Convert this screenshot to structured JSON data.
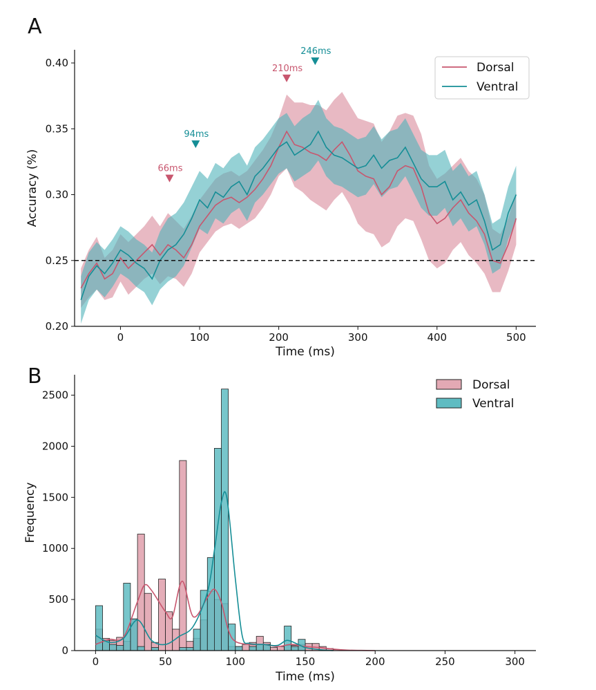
{
  "figure": {
    "panels": [
      {
        "letter": "A"
      },
      {
        "letter": "B"
      }
    ]
  },
  "colors": {
    "dorsal": "#c8566e",
    "dorsal_fill": "#d98a9b",
    "ventral": "#158e96",
    "ventral_fill": "#4fb3b9",
    "dorsal_bar": "#e3a9b4",
    "ventral_bar": "#5fbcc2",
    "chance": "#111111"
  },
  "chart_data": [
    {
      "type": "line",
      "panel": "A",
      "xlabel": "Time (ms)",
      "ylabel": "Accuracy (%)",
      "xlim": [
        -58,
        525
      ],
      "ylim": [
        0.2,
        0.41
      ],
      "xticks": [
        0,
        100,
        200,
        300,
        400,
        500
      ],
      "yticks": [
        0.2,
        0.25,
        0.3,
        0.35,
        0.4
      ],
      "ytick_labels": [
        "0.20",
        "0.25",
        "0.30",
        "0.35",
        "0.40"
      ],
      "chance_level": 0.25,
      "legend": {
        "position": "top-right",
        "entries": [
          "Dorsal",
          "Ventral"
        ]
      },
      "series": [
        {
          "name": "Dorsal",
          "x": [
            -50,
            -40,
            -30,
            -20,
            -10,
            0,
            10,
            20,
            30,
            40,
            50,
            60,
            70,
            80,
            90,
            100,
            110,
            120,
            130,
            140,
            150,
            160,
            170,
            180,
            190,
            200,
            210,
            220,
            230,
            240,
            250,
            260,
            270,
            280,
            290,
            300,
            310,
            320,
            330,
            340,
            350,
            360,
            370,
            380,
            390,
            400,
            410,
            420,
            430,
            440,
            450,
            460,
            470,
            480,
            490,
            500
          ],
          "y": [
            0.229,
            0.24,
            0.248,
            0.236,
            0.24,
            0.252,
            0.244,
            0.25,
            0.256,
            0.262,
            0.254,
            0.262,
            0.258,
            0.252,
            0.262,
            0.276,
            0.284,
            0.292,
            0.296,
            0.298,
            0.294,
            0.298,
            0.304,
            0.312,
            0.322,
            0.336,
            0.348,
            0.338,
            0.336,
            0.332,
            0.33,
            0.326,
            0.334,
            0.34,
            0.33,
            0.318,
            0.314,
            0.312,
            0.3,
            0.306,
            0.318,
            0.322,
            0.32,
            0.306,
            0.286,
            0.278,
            0.282,
            0.29,
            0.296,
            0.286,
            0.28,
            0.27,
            0.25,
            0.248,
            0.262,
            0.282
          ],
          "lower": [
            0.214,
            0.222,
            0.228,
            0.22,
            0.222,
            0.234,
            0.224,
            0.23,
            0.236,
            0.24,
            0.232,
            0.238,
            0.236,
            0.23,
            0.24,
            0.256,
            0.264,
            0.272,
            0.276,
            0.278,
            0.274,
            0.278,
            0.282,
            0.29,
            0.3,
            0.314,
            0.32,
            0.306,
            0.302,
            0.296,
            0.292,
            0.288,
            0.296,
            0.302,
            0.292,
            0.278,
            0.272,
            0.27,
            0.26,
            0.264,
            0.276,
            0.282,
            0.28,
            0.266,
            0.25,
            0.244,
            0.248,
            0.258,
            0.264,
            0.254,
            0.248,
            0.24,
            0.226,
            0.226,
            0.242,
            0.262
          ],
          "upper": [
            0.244,
            0.258,
            0.268,
            0.252,
            0.258,
            0.27,
            0.264,
            0.27,
            0.276,
            0.284,
            0.276,
            0.286,
            0.28,
            0.274,
            0.284,
            0.296,
            0.304,
            0.312,
            0.316,
            0.318,
            0.314,
            0.318,
            0.326,
            0.334,
            0.344,
            0.358,
            0.376,
            0.37,
            0.37,
            0.368,
            0.368,
            0.364,
            0.372,
            0.378,
            0.368,
            0.358,
            0.356,
            0.354,
            0.34,
            0.348,
            0.36,
            0.362,
            0.36,
            0.346,
            0.322,
            0.312,
            0.316,
            0.322,
            0.328,
            0.318,
            0.312,
            0.3,
            0.274,
            0.27,
            0.282,
            0.302
          ]
        },
        {
          "name": "Ventral",
          "x": [
            -50,
            -40,
            -30,
            -20,
            -10,
            0,
            10,
            20,
            30,
            40,
            50,
            60,
            70,
            80,
            90,
            100,
            110,
            120,
            130,
            140,
            150,
            160,
            170,
            180,
            190,
            200,
            210,
            220,
            230,
            240,
            250,
            260,
            270,
            280,
            290,
            300,
            310,
            320,
            330,
            340,
            350,
            360,
            370,
            380,
            390,
            400,
            410,
            420,
            430,
            440,
            450,
            460,
            470,
            480,
            490,
            500
          ],
          "y": [
            0.22,
            0.238,
            0.246,
            0.24,
            0.248,
            0.258,
            0.254,
            0.248,
            0.244,
            0.236,
            0.25,
            0.258,
            0.262,
            0.27,
            0.282,
            0.296,
            0.29,
            0.302,
            0.298,
            0.306,
            0.31,
            0.3,
            0.314,
            0.32,
            0.328,
            0.336,
            0.34,
            0.33,
            0.334,
            0.338,
            0.348,
            0.336,
            0.33,
            0.328,
            0.324,
            0.32,
            0.322,
            0.33,
            0.32,
            0.326,
            0.328,
            0.336,
            0.324,
            0.312,
            0.306,
            0.306,
            0.31,
            0.296,
            0.302,
            0.292,
            0.296,
            0.28,
            0.258,
            0.262,
            0.286,
            0.3
          ],
          "lower": [
            0.202,
            0.22,
            0.228,
            0.222,
            0.23,
            0.24,
            0.236,
            0.23,
            0.226,
            0.216,
            0.228,
            0.234,
            0.238,
            0.246,
            0.26,
            0.274,
            0.27,
            0.282,
            0.278,
            0.286,
            0.29,
            0.28,
            0.294,
            0.3,
            0.308,
            0.316,
            0.32,
            0.31,
            0.314,
            0.318,
            0.326,
            0.314,
            0.308,
            0.306,
            0.302,
            0.298,
            0.3,
            0.308,
            0.298,
            0.304,
            0.306,
            0.314,
            0.302,
            0.29,
            0.284,
            0.284,
            0.29,
            0.276,
            0.282,
            0.272,
            0.276,
            0.262,
            0.24,
            0.244,
            0.266,
            0.28
          ],
          "upper": [
            0.238,
            0.256,
            0.264,
            0.258,
            0.266,
            0.276,
            0.272,
            0.266,
            0.262,
            0.256,
            0.272,
            0.282,
            0.286,
            0.294,
            0.306,
            0.318,
            0.312,
            0.324,
            0.32,
            0.328,
            0.332,
            0.322,
            0.336,
            0.342,
            0.35,
            0.358,
            0.362,
            0.352,
            0.358,
            0.362,
            0.372,
            0.358,
            0.352,
            0.35,
            0.346,
            0.342,
            0.344,
            0.352,
            0.342,
            0.348,
            0.35,
            0.358,
            0.346,
            0.334,
            0.33,
            0.33,
            0.334,
            0.318,
            0.324,
            0.314,
            0.318,
            0.3,
            0.278,
            0.282,
            0.306,
            0.322
          ]
        }
      ],
      "peaks": [
        {
          "label": "66ms",
          "x": 62,
          "y": 0.312,
          "series": "Dorsal"
        },
        {
          "label": "94ms",
          "x": 95,
          "y": 0.338,
          "series": "Ventral"
        },
        {
          "label": "210ms",
          "x": 210,
          "y": 0.388,
          "series": "Dorsal"
        },
        {
          "label": "246ms",
          "x": 246,
          "y": 0.401,
          "series": "Ventral"
        }
      ]
    },
    {
      "type": "bar",
      "subtype": "histogram_with_kde",
      "panel": "B",
      "xlabel": "Time (ms)",
      "ylabel": "Frequency",
      "xlim": [
        -15,
        315
      ],
      "ylim": [
        0,
        2700
      ],
      "xticks": [
        0,
        50,
        100,
        150,
        200,
        250,
        300
      ],
      "yticks": [
        0,
        500,
        1000,
        1500,
        2000,
        2500
      ],
      "bin_width": 5,
      "legend": {
        "position": "top-right",
        "entries": [
          "Dorsal",
          "Ventral"
        ]
      },
      "series": [
        {
          "name": "Dorsal",
          "bin_starts": [
            0,
            5,
            10,
            15,
            20,
            25,
            30,
            35,
            40,
            45,
            50,
            55,
            60,
            65,
            70,
            75,
            80,
            85,
            90,
            95,
            100,
            105,
            110,
            115,
            120,
            125,
            130,
            135,
            140,
            145,
            150,
            155,
            160,
            165,
            170,
            175
          ],
          "values": [
            210,
            120,
            100,
            130,
            90,
            310,
            1140,
            560,
            80,
            700,
            380,
            210,
            1860,
            90,
            120,
            300,
            580,
            500,
            460,
            40,
            40,
            60,
            80,
            140,
            80,
            30,
            40,
            50,
            50,
            60,
            70,
            70,
            40,
            20,
            10,
            5
          ],
          "kde_x": [
            0,
            10,
            20,
            30,
            35,
            40,
            50,
            55,
            62,
            70,
            80,
            85,
            90,
            95,
            100,
            110,
            120,
            130,
            140,
            150,
            160,
            170,
            180,
            190,
            200
          ],
          "kde_y": [
            60,
            110,
            130,
            480,
            640,
            590,
            380,
            330,
            680,
            330,
            520,
            600,
            470,
            200,
            90,
            60,
            60,
            40,
            60,
            40,
            30,
            15,
            5,
            2,
            0
          ]
        },
        {
          "name": "Ventral",
          "bin_starts": [
            0,
            5,
            10,
            15,
            20,
            25,
            30,
            35,
            40,
            45,
            50,
            55,
            60,
            65,
            70,
            75,
            80,
            85,
            90,
            95,
            100,
            105,
            110,
            115,
            120,
            125,
            130,
            135,
            140,
            145,
            150,
            155,
            160,
            165,
            170,
            175
          ],
          "values": [
            440,
            100,
            60,
            50,
            660,
            310,
            40,
            0,
            30,
            0,
            0,
            0,
            30,
            30,
            210,
            590,
            910,
            1980,
            2560,
            260,
            40,
            0,
            40,
            60,
            60,
            0,
            0,
            240,
            40,
            110,
            0,
            0,
            0,
            0,
            0,
            0
          ],
          "kde_x": [
            0,
            10,
            20,
            30,
            40,
            50,
            60,
            70,
            80,
            85,
            90,
            94,
            100,
            105,
            110,
            120,
            130,
            137,
            145,
            150,
            160,
            170
          ],
          "kde_y": [
            150,
            80,
            120,
            300,
            100,
            60,
            140,
            240,
            570,
            980,
            1450,
            1490,
            700,
            140,
            70,
            60,
            50,
            100,
            60,
            30,
            10,
            0
          ]
        }
      ]
    }
  ]
}
